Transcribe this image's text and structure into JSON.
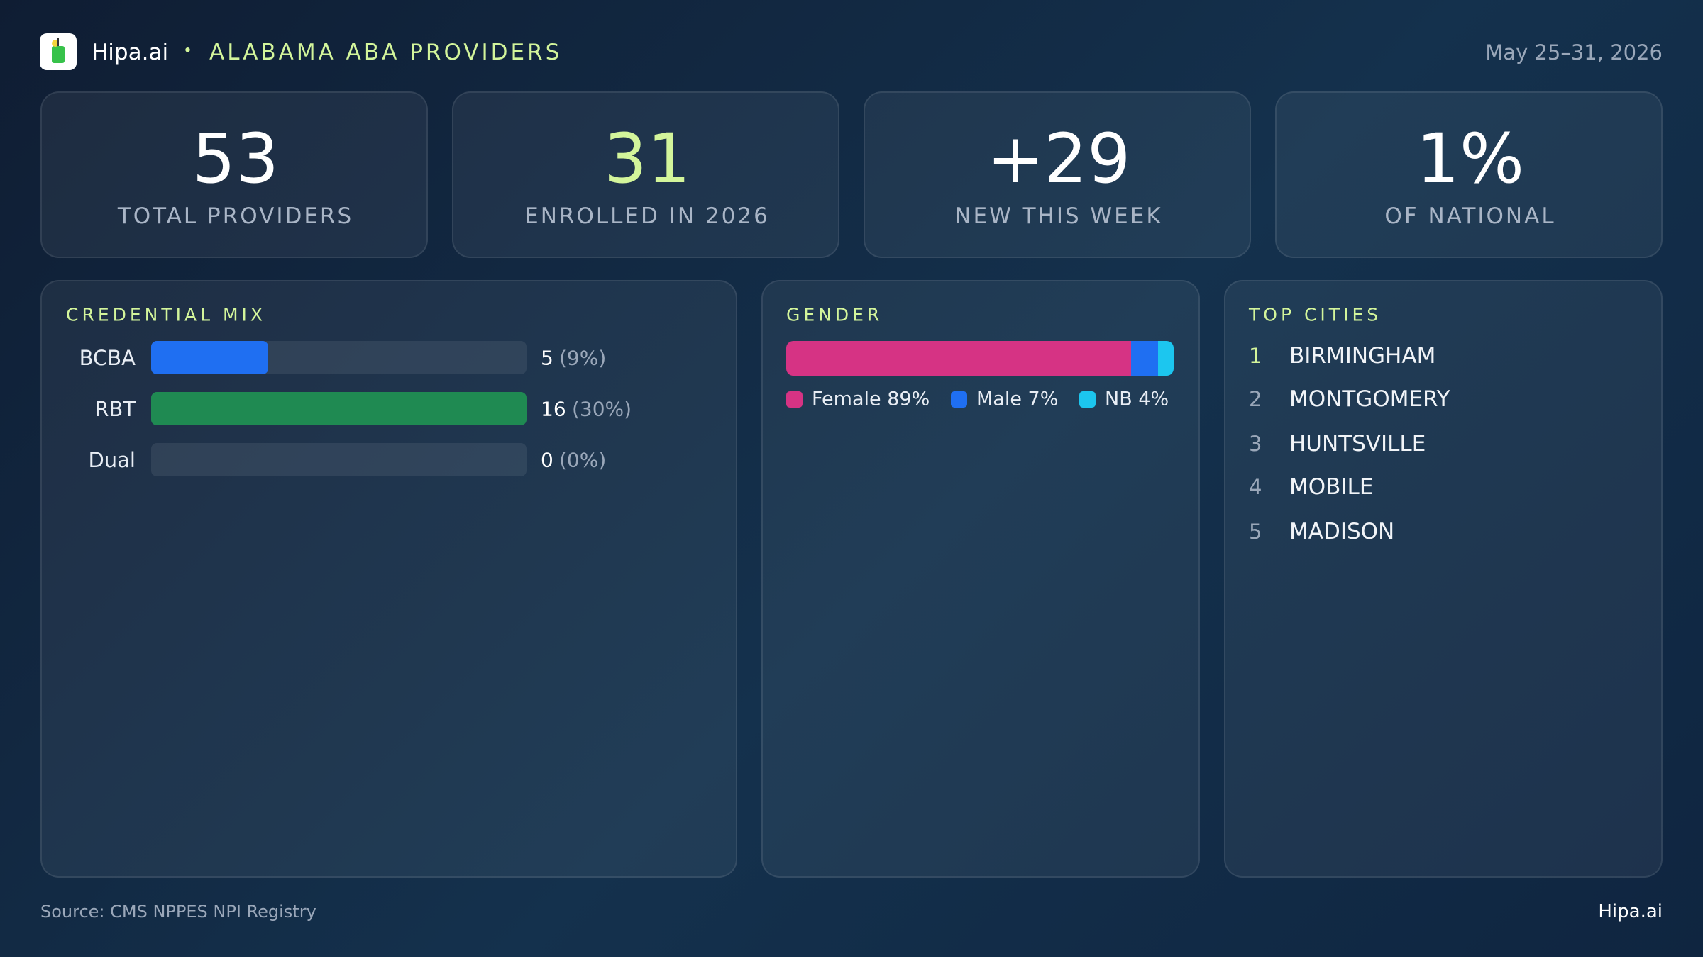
{
  "header": {
    "brand": "Hipa.ai",
    "title": "ALABAMA ABA PROVIDERS",
    "date": "May 25–31, 2026"
  },
  "kpis": [
    {
      "value": "53",
      "label": "TOTAL PROVIDERS"
    },
    {
      "value": "31",
      "label": "ENROLLED IN 2026"
    },
    {
      "value": "+29",
      "label": "NEW THIS WEEK"
    },
    {
      "value": "1%",
      "label": "OF NATIONAL"
    }
  ],
  "credential_mix": {
    "title": "CREDENTIAL MIX",
    "rows": [
      {
        "label": "BCBA",
        "count": 5,
        "share": "(9%)",
        "color": "#1f6ff2"
      },
      {
        "label": "RBT",
        "count": 16,
        "share": "(30%)",
        "color": "#1f8a52"
      },
      {
        "label": "Dual",
        "count": 0,
        "share": "(0%)",
        "color": "#1f6ff2"
      }
    ]
  },
  "gender": {
    "title": "GENDER",
    "segments": [
      {
        "value": 89,
        "label": "Female 89%",
        "color": "#d63384"
      },
      {
        "value": 7,
        "label": "Male 7%",
        "color": "#1f6ff2"
      },
      {
        "value": 4,
        "label": "NB 4%",
        "color": "#1cc6ef"
      }
    ]
  },
  "top_cities": {
    "title": "TOP CITIES",
    "rows": [
      {
        "rank": 1,
        "name": "BIRMINGHAM"
      },
      {
        "rank": 2,
        "name": "MONTGOMERY"
      },
      {
        "rank": 3,
        "name": "HUNTSVILLE"
      },
      {
        "rank": 4,
        "name": "MOBILE"
      },
      {
        "rank": 5,
        "name": "MADISON"
      }
    ]
  },
  "footer": {
    "source": "Source: CMS NPPES NPI Registry",
    "brand": "Hipa.ai"
  }
}
